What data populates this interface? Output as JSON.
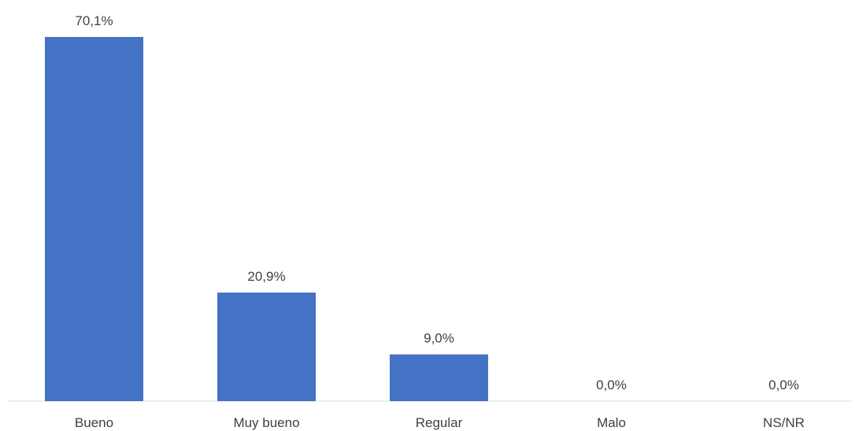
{
  "chart_data": {
    "type": "bar",
    "categories": [
      "Bueno",
      "Muy bueno",
      "Regular",
      "Malo",
      "NS/NR"
    ],
    "values": [
      70.1,
      20.9,
      9.0,
      0.0,
      0.0
    ],
    "data_labels": [
      "70,1%",
      "20,9%",
      "9,0%",
      "0,0%",
      "0,0%"
    ],
    "title": "",
    "xlabel": "",
    "ylabel": "",
    "ylim": [
      0,
      70.1
    ],
    "bar_color": "#4472C4",
    "axis_color": "#D9D9D9",
    "grid": false,
    "legend": "none"
  }
}
